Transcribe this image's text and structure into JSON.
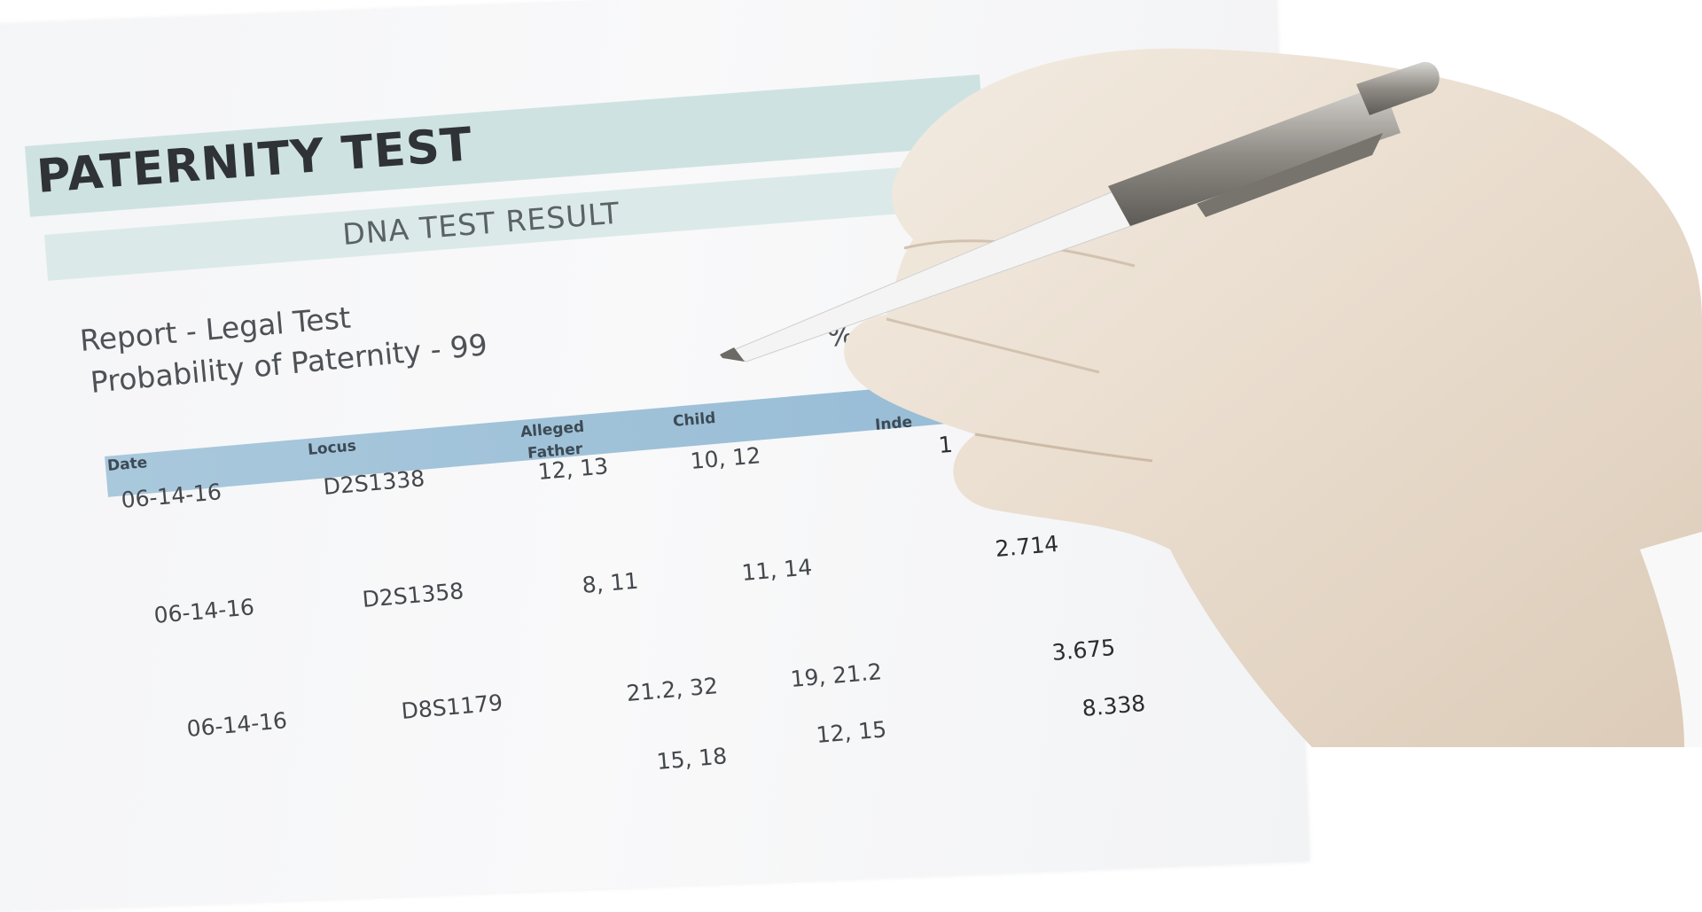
{
  "document": {
    "title": "PATERNITY TEST",
    "subtitle": "DNA TEST RESULT",
    "report_line": "Report - Legal Test",
    "probability_line": "Probability of Paternity - 99",
    "probability_suffix": "%",
    "table": {
      "headers": [
        "Date",
        "Locus",
        "Alleged",
        "Father",
        "Child",
        "Inde"
      ],
      "rows": [
        {
          "date": "06-14-16",
          "locus": "D2S1338",
          "father": "12, 13",
          "child": "10, 12",
          "index": "1"
        },
        {
          "date": "06-14-16",
          "locus": "D2S1358",
          "father": "8, 11",
          "child": "11, 14",
          "index": "2.714"
        },
        {
          "date": "06-14-16",
          "locus": "D8S1179",
          "father": "21.2, 32",
          "child": "19, 21.2",
          "index": "3.675"
        },
        {
          "date": "",
          "locus": "",
          "father": "15, 18",
          "child": "12, 15",
          "index": "8.338"
        }
      ]
    }
  },
  "colors": {
    "title_band": "#cfe2e2",
    "table_header": "#a9c8dc",
    "glove": "#ece2d6"
  }
}
